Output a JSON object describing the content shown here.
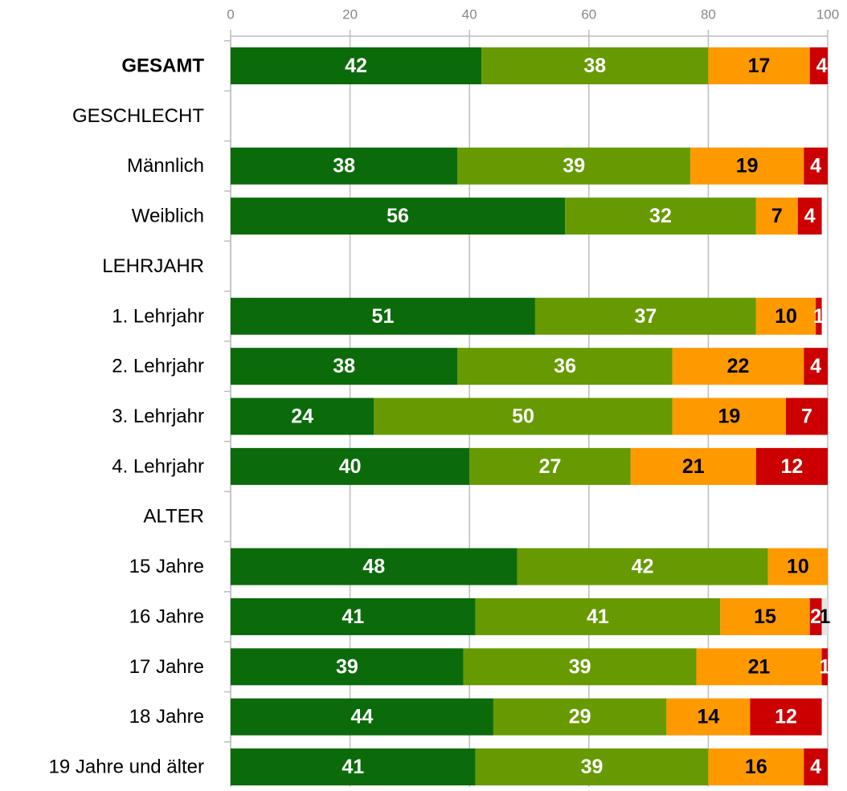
{
  "chart_data": {
    "type": "stacked-barh",
    "categories": [
      "GESAMT",
      "GESCHLECHT",
      "Männlich",
      "Weiblich",
      "LEHRJAHR",
      "1. Lehrjahr",
      "2. Lehrjahr",
      "3. Lehrjahr",
      "4. Lehrjahr",
      "ALTER",
      "15 Jahre",
      "16 Jahre",
      "17 Jahre",
      "18 Jahre",
      "19 Jahre und älter"
    ],
    "series": [
      {
        "color": "#0b6b0b",
        "label_color": "#ffffff",
        "values": [
          42,
          null,
          38,
          56,
          null,
          51,
          38,
          24,
          40,
          null,
          48,
          41,
          39,
          44,
          41
        ]
      },
      {
        "color": "#669a00",
        "label_color": "#ffffff",
        "values": [
          38,
          null,
          39,
          32,
          null,
          37,
          36,
          50,
          27,
          null,
          42,
          41,
          39,
          29,
          39
        ]
      },
      {
        "color": "#ff9900",
        "label_color": "#000000",
        "values": [
          17,
          null,
          19,
          7,
          null,
          10,
          22,
          19,
          21,
          null,
          10,
          15,
          21,
          14,
          16
        ]
      },
      {
        "color": "#cc0000",
        "label_color": "#ffffff",
        "values": [
          4,
          null,
          4,
          4,
          null,
          1,
          4,
          7,
          12,
          null,
          null,
          2,
          1,
          12,
          4
        ]
      },
      {
        "color": "#e6e6e6",
        "label_color": "#000000",
        "values": [
          null,
          null,
          null,
          null,
          null,
          null,
          null,
          null,
          null,
          null,
          null,
          1,
          null,
          null,
          null
        ]
      }
    ],
    "xlim": [
      0,
      100
    ],
    "xticks": [
      0,
      20,
      40,
      60,
      80,
      100
    ],
    "grid": true
  }
}
